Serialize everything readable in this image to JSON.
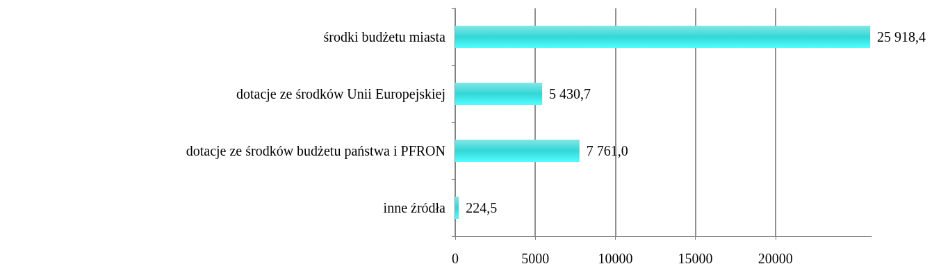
{
  "chart_data": {
    "type": "bar",
    "orientation": "horizontal",
    "categories": [
      "środki budżetu miasta",
      "dotacje ze środków Unii Europejskiej",
      "dotacje ze środków budżetu państwa i PFRON",
      "inne źródła"
    ],
    "values": [
      25918.4,
      5430.7,
      7761.0,
      224.5
    ],
    "value_labels": [
      "25 918,4",
      "5 430,7",
      "7 761,0",
      "224,5"
    ],
    "color": "#33d6d6",
    "xlim": [
      0,
      26000
    ],
    "xticks": [
      0,
      5000,
      10000,
      15000,
      20000
    ],
    "grid": "x"
  }
}
